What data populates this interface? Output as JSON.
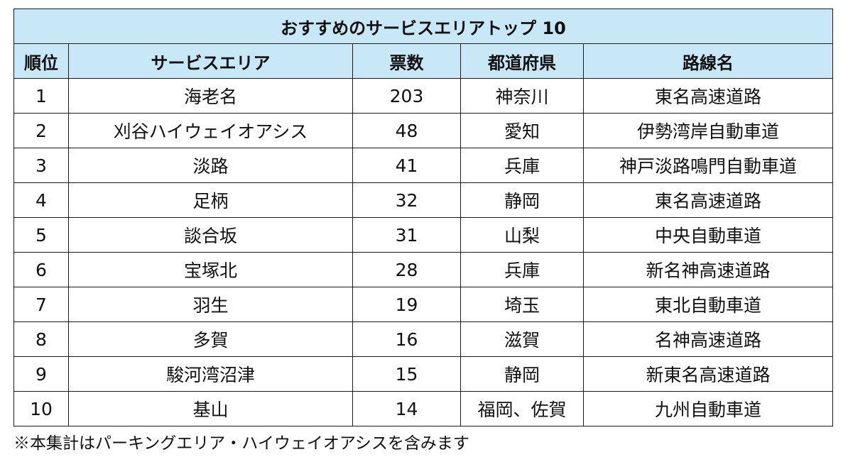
{
  "table": {
    "title": "おすすめのサービスエリアトップ 10",
    "headers": {
      "rank": "順位",
      "service_area": "サービスエリア",
      "votes": "票数",
      "prefecture": "都道府県",
      "route": "路線名"
    },
    "rows": [
      {
        "rank": "1",
        "service_area": "海老名",
        "votes": "203",
        "prefecture": "神奈川",
        "route": "東名高速道路"
      },
      {
        "rank": "2",
        "service_area": "刈谷ハイウェイオアシス",
        "votes": "48",
        "prefecture": "愛知",
        "route": "伊勢湾岸自動車道"
      },
      {
        "rank": "3",
        "service_area": "淡路",
        "votes": "41",
        "prefecture": "兵庫",
        "route": "神戸淡路鳴門自動車道"
      },
      {
        "rank": "4",
        "service_area": "足柄",
        "votes": "32",
        "prefecture": "静岡",
        "route": "東名高速道路"
      },
      {
        "rank": "5",
        "service_area": "談合坂",
        "votes": "31",
        "prefecture": "山梨",
        "route": "中央自動車道"
      },
      {
        "rank": "6",
        "service_area": "宝塚北",
        "votes": "28",
        "prefecture": "兵庫",
        "route": "新名神高速道路"
      },
      {
        "rank": "7",
        "service_area": "羽生",
        "votes": "19",
        "prefecture": "埼玉",
        "route": "東北自動車道"
      },
      {
        "rank": "8",
        "service_area": "多賀",
        "votes": "16",
        "prefecture": "滋賀",
        "route": "名神高速道路"
      },
      {
        "rank": "9",
        "service_area": "駿河湾沼津",
        "votes": "15",
        "prefecture": "静岡",
        "route": "新東名高速道路"
      },
      {
        "rank": "10",
        "service_area": "基山",
        "votes": "14",
        "prefecture": "福岡、佐賀",
        "route": "九州自動車道"
      }
    ]
  },
  "footnote": "※本集計はパーキングエリア・ハイウェイオアシスを含みます",
  "colors": {
    "header_background": "#c9e8f7",
    "border": "#1a1a1a"
  }
}
